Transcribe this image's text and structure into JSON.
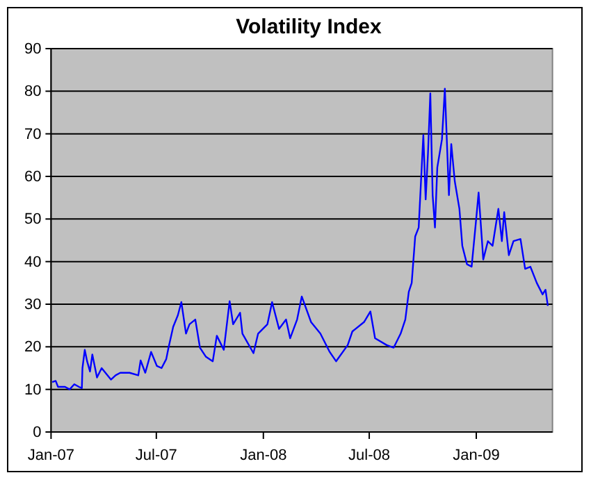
{
  "chart_data": {
    "type": "line",
    "title": "Volatility Index",
    "x": [
      "2007-01-03",
      "2007-01-09",
      "2007-01-13",
      "2007-01-25",
      "2007-02-02",
      "2007-02-10",
      "2007-02-18",
      "2007-02-23",
      "2007-02-24",
      "2007-02-28",
      "2007-03-04",
      "2007-03-09",
      "2007-03-13",
      "2007-03-21",
      "2007-03-29",
      "2007-04-14",
      "2007-04-22",
      "2007-04-30",
      "2007-05-16",
      "2007-05-31",
      "2007-06-04",
      "2007-06-12",
      "2007-06-22",
      "2007-07-02",
      "2007-07-10",
      "2007-07-18",
      "2007-07-22",
      "2007-07-30",
      "2007-08-07",
      "2007-08-13",
      "2007-08-21",
      "2007-08-27",
      "2007-09-06",
      "2007-09-14",
      "2007-09-24",
      "2007-10-06",
      "2007-10-13",
      "2007-10-25",
      "2007-11-04",
      "2007-11-10",
      "2007-11-22",
      "2007-11-26",
      "2007-12-15",
      "2007-12-23",
      "2008-01-08",
      "2008-01-16",
      "2008-01-28",
      "2008-02-09",
      "2008-02-16",
      "2008-02-28",
      "2008-03-07",
      "2008-03-23",
      "2008-04-08",
      "2008-04-24",
      "2008-05-05",
      "2008-05-25",
      "2008-06-02",
      "2008-06-22",
      "2008-07-03",
      "2008-07-11",
      "2008-07-31",
      "2008-08-12",
      "2008-08-24",
      "2008-09-01",
      "2008-09-07",
      "2008-09-12",
      "2008-09-18",
      "2008-09-24",
      "2008-09-28",
      "2008-10-02",
      "2008-10-06",
      "2008-10-10",
      "2008-10-14",
      "2008-10-18",
      "2008-10-22",
      "2008-10-26",
      "2008-11-03",
      "2008-11-08",
      "2008-11-15",
      "2008-11-19",
      "2008-11-25",
      "2008-12-03",
      "2008-12-08",
      "2008-12-16",
      "2008-12-24",
      "2009-01-01",
      "2009-01-05",
      "2009-01-13",
      "2009-01-21",
      "2009-01-29",
      "2009-02-08",
      "2009-02-14",
      "2009-02-18",
      "2009-02-26",
      "2009-03-06",
      "2009-03-18",
      "2009-03-26",
      "2009-04-04",
      "2009-04-15",
      "2009-04-25",
      "2009-04-30",
      "2009-05-04"
    ],
    "series": [
      {
        "color": "#0000ff",
        "values": [
          11.7,
          12,
          10.6,
          10.6,
          10,
          11.2,
          10.6,
          10.3,
          15,
          19.3,
          16.6,
          14.2,
          18.2,
          12.8,
          15,
          12.3,
          13.3,
          13.9,
          13.9,
          13.3,
          16.8,
          13.9,
          18.8,
          15.5,
          15,
          17.1,
          19.8,
          24.7,
          27.4,
          30.5,
          23.1,
          25.3,
          26.4,
          19.8,
          17.7,
          16.6,
          22.6,
          19.3,
          30.7,
          25.3,
          28,
          23.1,
          18.5,
          23.1,
          25.3,
          30.5,
          24.2,
          26.4,
          22,
          26.4,
          31.8,
          25.8,
          23.1,
          18.8,
          16.6,
          20.4,
          23.6,
          25.8,
          28.3,
          22,
          20.4,
          19.8,
          23.1,
          26.4,
          32.9,
          35,
          45.9,
          48,
          58.9,
          69.7,
          54.6,
          65.4,
          79.5,
          55.6,
          48,
          62.1,
          68.7,
          80.6,
          55.6,
          67.6,
          58.9,
          52.4,
          43.7,
          39.4,
          38.8,
          50.2,
          56.2,
          40.5,
          44.8,
          43.7,
          52.4,
          44.8,
          51.6,
          41.5,
          44.8,
          45.3,
          38.3,
          38.8,
          35,
          32.3,
          33.4,
          29.6
        ]
      }
    ],
    "xlim": [
      "2007-01-01",
      "2009-05-12"
    ],
    "xticks": [
      {
        "value": "2007-01-01",
        "label": "Jan-07"
      },
      {
        "value": "2007-07-01",
        "label": "Jul-07"
      },
      {
        "value": "2008-01-01",
        "label": "Jan-08"
      },
      {
        "value": "2008-07-01",
        "label": "Jul-08"
      },
      {
        "value": "2009-01-01",
        "label": "Jan-09"
      }
    ],
    "ylim": [
      0,
      90
    ],
    "yticks": [
      0,
      10,
      20,
      30,
      40,
      50,
      60,
      70,
      80,
      90
    ],
    "grid": "y"
  }
}
